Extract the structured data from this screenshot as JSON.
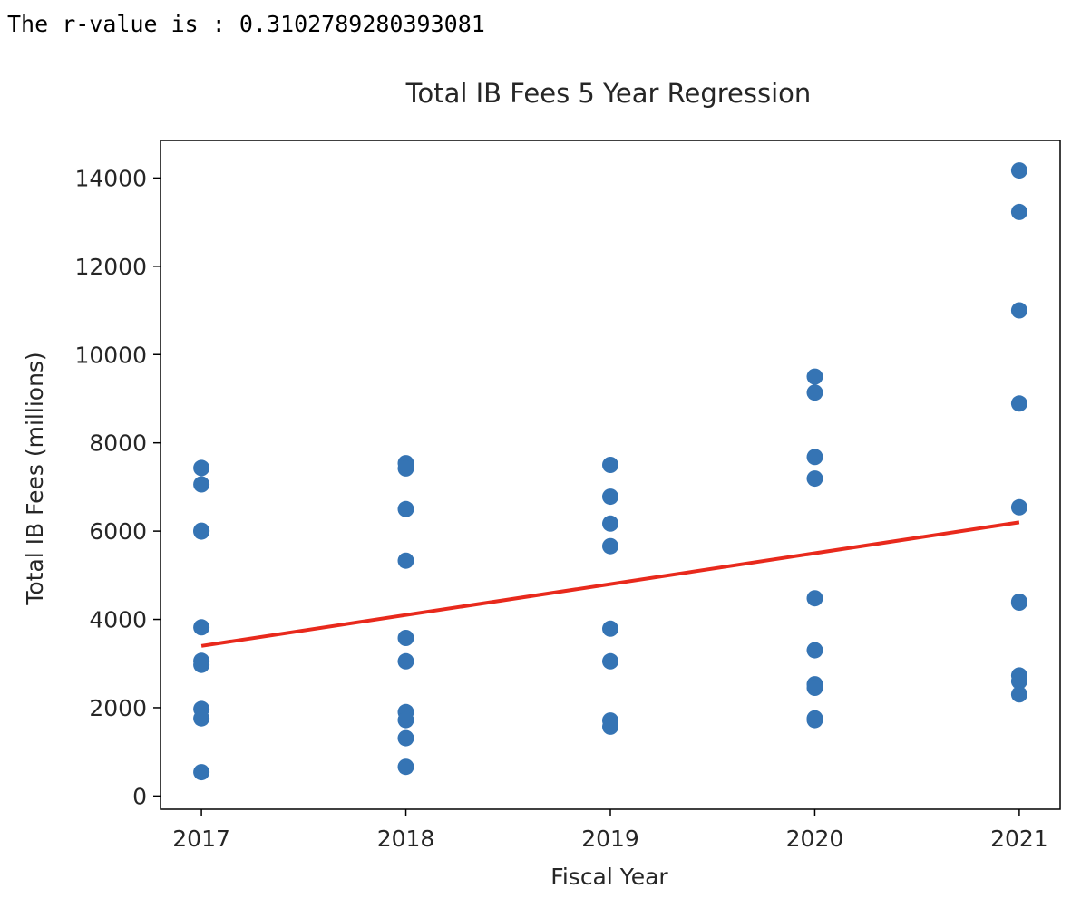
{
  "output": {
    "text": "The r-value is : 0.3102789280393081"
  },
  "chart_data": {
    "type": "scatter",
    "title": "Total IB Fees 5 Year Regression",
    "xlabel": "Fiscal Year",
    "ylabel": "Total IB Fees (millions)",
    "xlim": [
      2016.8,
      2021.2
    ],
    "ylim": [
      -300,
      14850
    ],
    "x_ticks": [
      2017,
      2018,
      2019,
      2020,
      2021
    ],
    "y_ticks": [
      0,
      2000,
      4000,
      6000,
      8000,
      10000,
      12000,
      14000
    ],
    "grid": false,
    "series": [
      {
        "kind": "points",
        "color": "#3574b4",
        "points": [
          [
            2017,
            7430
          ],
          [
            2017,
            7060
          ],
          [
            2017,
            6010
          ],
          [
            2017,
            5990
          ],
          [
            2017,
            3820
          ],
          [
            2017,
            3060
          ],
          [
            2017,
            2970
          ],
          [
            2017,
            1970
          ],
          [
            2017,
            1760
          ],
          [
            2017,
            540
          ],
          [
            2018,
            7540
          ],
          [
            2018,
            7420
          ],
          [
            2018,
            6500
          ],
          [
            2018,
            5330
          ],
          [
            2018,
            3580
          ],
          [
            2018,
            3050
          ],
          [
            2018,
            1900
          ],
          [
            2018,
            1720
          ],
          [
            2018,
            1310
          ],
          [
            2018,
            660
          ],
          [
            2019,
            7500
          ],
          [
            2019,
            6780
          ],
          [
            2019,
            6170
          ],
          [
            2019,
            5660
          ],
          [
            2019,
            3790
          ],
          [
            2019,
            3050
          ],
          [
            2019,
            1710
          ],
          [
            2019,
            1570
          ],
          [
            2020,
            9500
          ],
          [
            2020,
            9140
          ],
          [
            2020,
            7680
          ],
          [
            2020,
            7190
          ],
          [
            2020,
            4480
          ],
          [
            2020,
            3300
          ],
          [
            2020,
            2530
          ],
          [
            2020,
            2450
          ],
          [
            2020,
            1760
          ],
          [
            2020,
            1720
          ],
          [
            2021,
            14170
          ],
          [
            2021,
            13230
          ],
          [
            2021,
            11000
          ],
          [
            2021,
            8890
          ],
          [
            2021,
            6540
          ],
          [
            2021,
            4400
          ],
          [
            2021,
            4380
          ],
          [
            2021,
            2730
          ],
          [
            2021,
            2600
          ],
          [
            2021,
            2300
          ]
        ]
      },
      {
        "kind": "regression-line",
        "color": "#e8291c",
        "points": [
          [
            2017,
            3400
          ],
          [
            2021,
            6200
          ]
        ]
      }
    ]
  }
}
